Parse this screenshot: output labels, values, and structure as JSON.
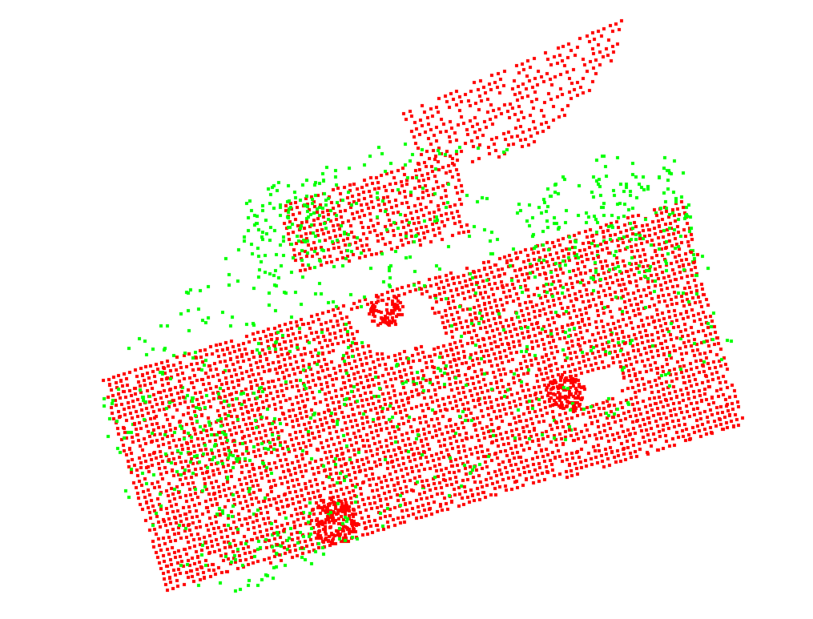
{
  "view": {
    "background": "#ffffff"
  },
  "point_cloud": {
    "series": [
      {
        "color": "#ff0000"
      },
      {
        "color": "#00ff00"
      }
    ]
  }
}
